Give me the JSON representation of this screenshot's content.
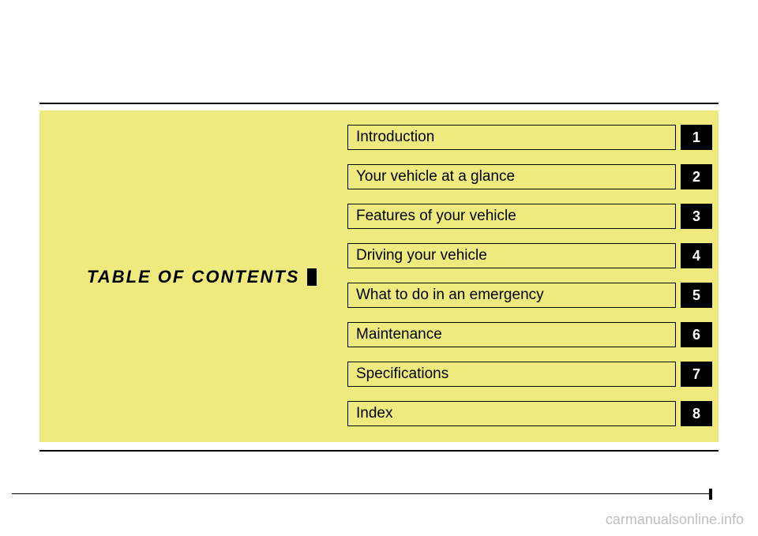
{
  "title": "TABLE OF CONTENTS",
  "items": [
    {
      "label": "Introduction",
      "num": "1"
    },
    {
      "label": "Your vehicle at a glance",
      "num": "2"
    },
    {
      "label": "Features of your vehicle",
      "num": "3"
    },
    {
      "label": "Driving your vehicle",
      "num": "4"
    },
    {
      "label": "What to do in an emergency",
      "num": "5"
    },
    {
      "label": "Maintenance",
      "num": "6"
    },
    {
      "label": "Specifications",
      "num": "7"
    },
    {
      "label": "Index",
      "num": "8"
    }
  ],
  "watermark": "carmanualsonline.info",
  "colors": {
    "panel_bg": "#eeea7e",
    "numbox_bg": "#000000",
    "numbox_text": "#ffffff",
    "border": "#000000",
    "text": "#000000",
    "watermark": "#bfbfbf"
  },
  "typography": {
    "title_fontsize": 22,
    "title_style": "italic bold",
    "item_fontsize": 19,
    "num_fontsize": 18
  }
}
